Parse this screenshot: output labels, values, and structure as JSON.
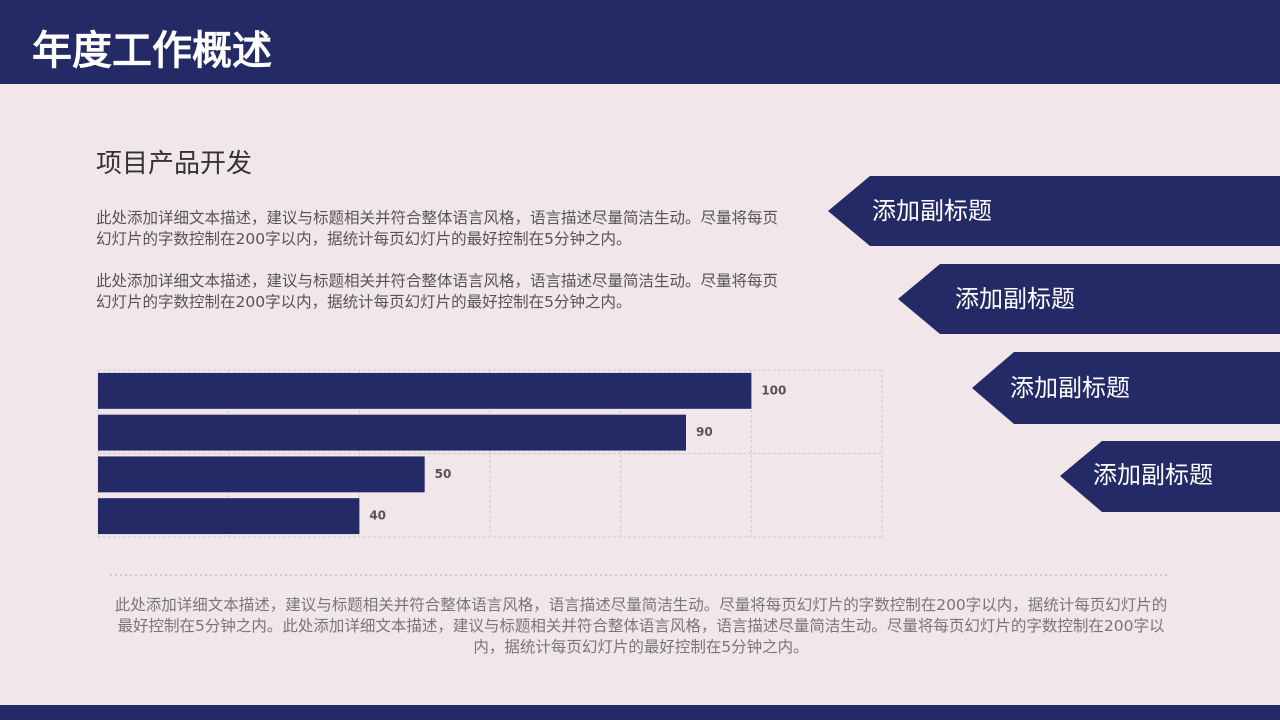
{
  "header": {
    "title": "年度工作概述"
  },
  "section": {
    "heading": "项目产品开发",
    "paragraphs": [
      "此处添加详细文本描述，建议与标题相关并符合整体语言风格，语言描述尽量简洁生动。尽量将每页幻灯片的字数控制在200字以内，据统计每页幻灯片的最好控制在5分钟之内。",
      "此处添加详细文本描述，建议与标题相关并符合整体语言风格，语言描述尽量简洁生动。尽量将每页幻灯片的字数控制在200字以内，据统计每页幻灯片的最好控制在5分钟之内。"
    ]
  },
  "subtitles": [
    "添加副标题",
    "添加副标题",
    "添加副标题",
    "添加副标题"
  ],
  "footer_text": "此处添加详细文本描述，建议与标题相关并符合整体语言风格，语言描述尽量简洁生动。尽量将每页幻灯片的字数控制在200字以内，据统计每页幻灯片的最好控制在5分钟之内。此处添加详细文本描述，建议与标题相关并符合整体语言风格，语言描述尽量简洁生动。尽量将每页幻灯片的字数控制在200字以内，据统计每页幻灯片的最好控制在5分钟之内。",
  "chart_data": {
    "type": "hbar",
    "categories": [
      null,
      null,
      null,
      null
    ],
    "values": [
      100,
      90,
      50,
      40
    ],
    "color": "#232a66",
    "xlim": [
      0,
      120
    ],
    "xticks": [
      0,
      20,
      40,
      60,
      80,
      100,
      120
    ],
    "grid": true
  }
}
